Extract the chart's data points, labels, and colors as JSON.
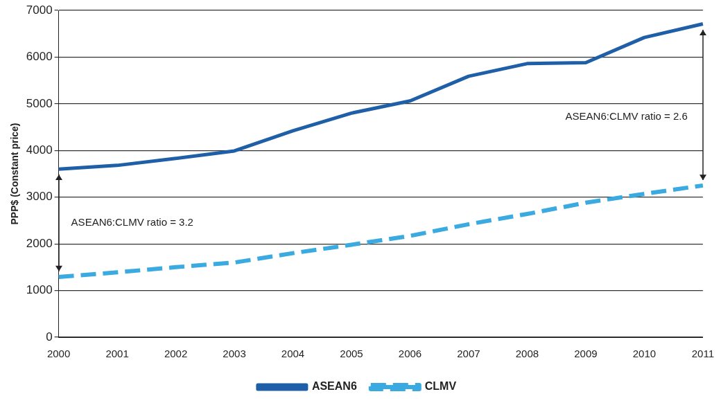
{
  "chart_data": {
    "type": "line",
    "ylabel": "PPP$ (Constant price)",
    "categories": [
      "2000",
      "2001",
      "2002",
      "2003",
      "2004",
      "2005",
      "2006",
      "2007",
      "2008",
      "2009",
      "2010",
      "2011"
    ],
    "series": [
      {
        "name": "ASEAN6",
        "color": "#1f5fa8",
        "line_style": "solid",
        "values": [
          3600,
          3680,
          3830,
          3990,
          4420,
          4800,
          5060,
          5590,
          5860,
          5880,
          6420,
          6710
        ]
      },
      {
        "name": "CLMV",
        "color": "#3aaae0",
        "line_style": "dashed",
        "values": [
          1290,
          1390,
          1500,
          1600,
          1800,
          1980,
          2170,
          2420,
          2640,
          2880,
          3070,
          3250
        ]
      }
    ],
    "ylim": [
      0,
      7000
    ],
    "yticks": [
      0,
      1000,
      2000,
      3000,
      4000,
      5000,
      6000,
      7000
    ],
    "grid": "y",
    "legend": "bottom",
    "marker": "none",
    "annotations": [
      "ASEAN6:CLMV ratio = 3.2",
      "ASEAN6:CLMV ratio = 2.6"
    ]
  }
}
